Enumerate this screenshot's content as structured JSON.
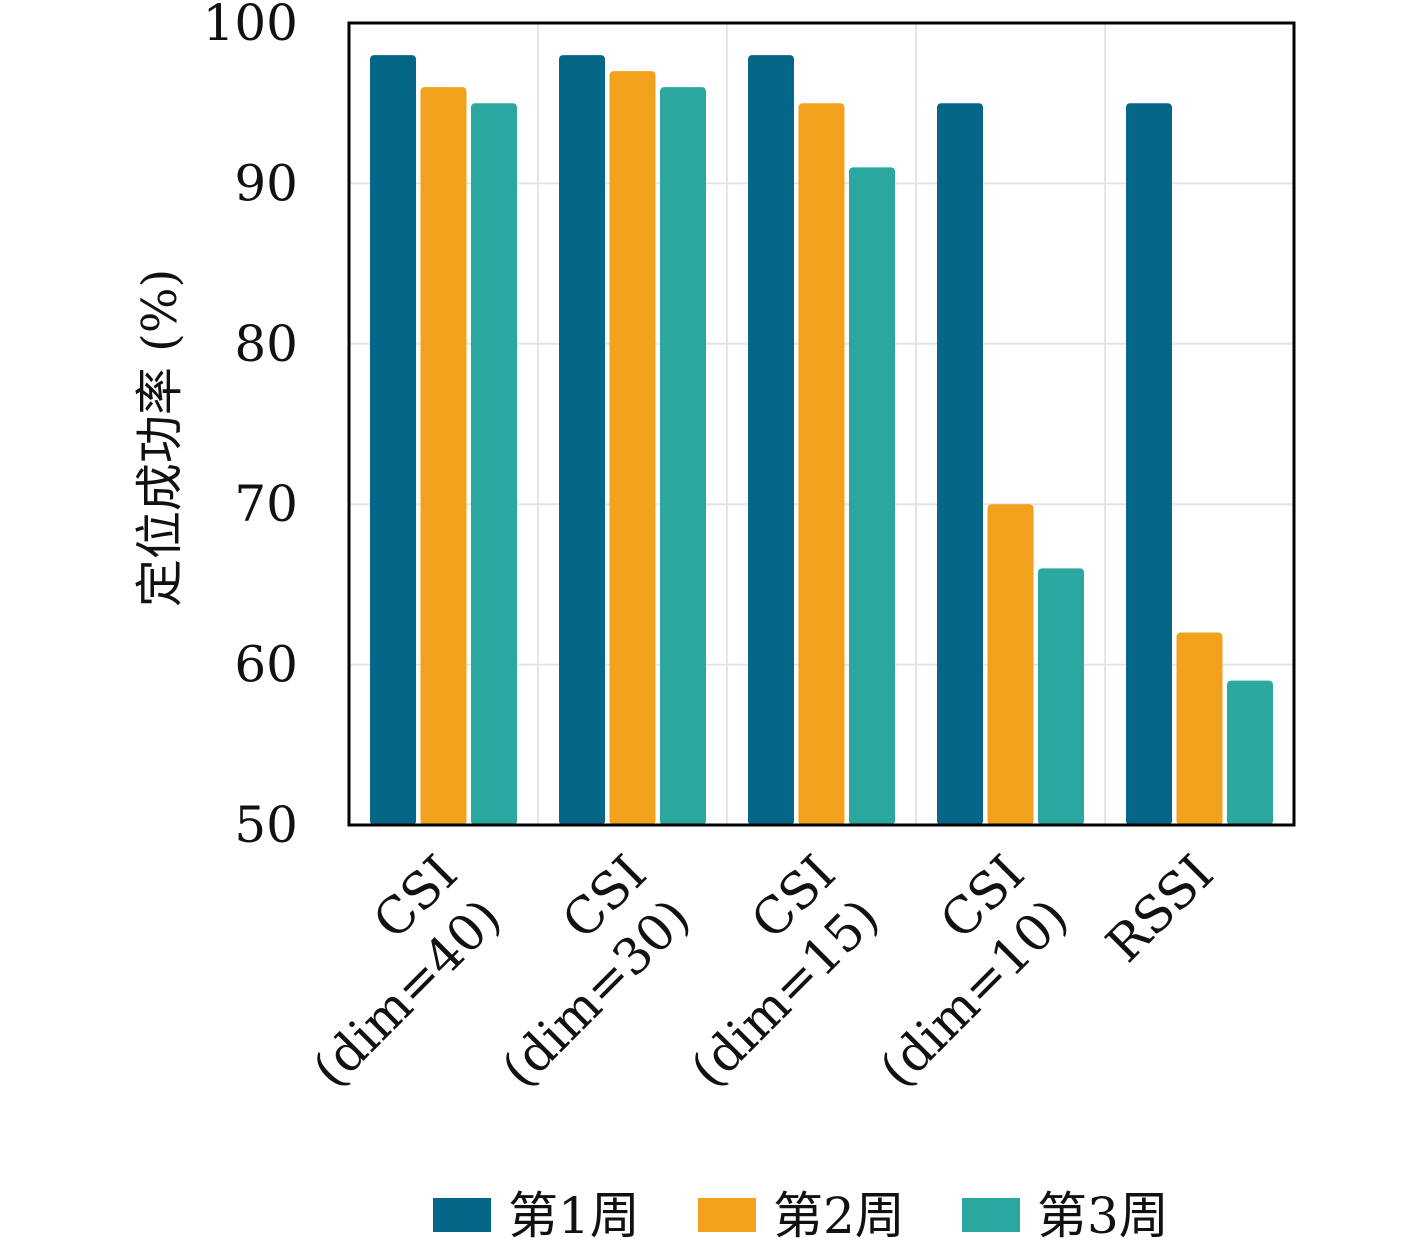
{
  "chart_data": {
    "type": "bar",
    "title": "",
    "xlabel": "",
    "ylabel": "定位成功率 (%)",
    "ylim": [
      50,
      100
    ],
    "yticks": [
      "50",
      "60",
      "70",
      "80",
      "90",
      "100"
    ],
    "grid": true,
    "legend_position": "bottom",
    "categories": [
      [
        "CSI",
        "(dim=40)"
      ],
      [
        "CSI",
        "(dim=30)"
      ],
      [
        "CSI",
        "(dim=15)"
      ],
      [
        "CSI",
        "(dim=10)"
      ],
      [
        "RSSI"
      ]
    ],
    "series": [
      {
        "name": "第1周",
        "color": "#066687",
        "values": [
          98,
          98,
          98,
          95,
          95
        ]
      },
      {
        "name": "第2周",
        "color": "#f2a11d",
        "values": [
          96,
          97,
          95,
          70,
          62
        ]
      },
      {
        "name": "第3周",
        "color": "#2aa8a0",
        "values": [
          95,
          96,
          91,
          66,
          59
        ]
      }
    ]
  }
}
